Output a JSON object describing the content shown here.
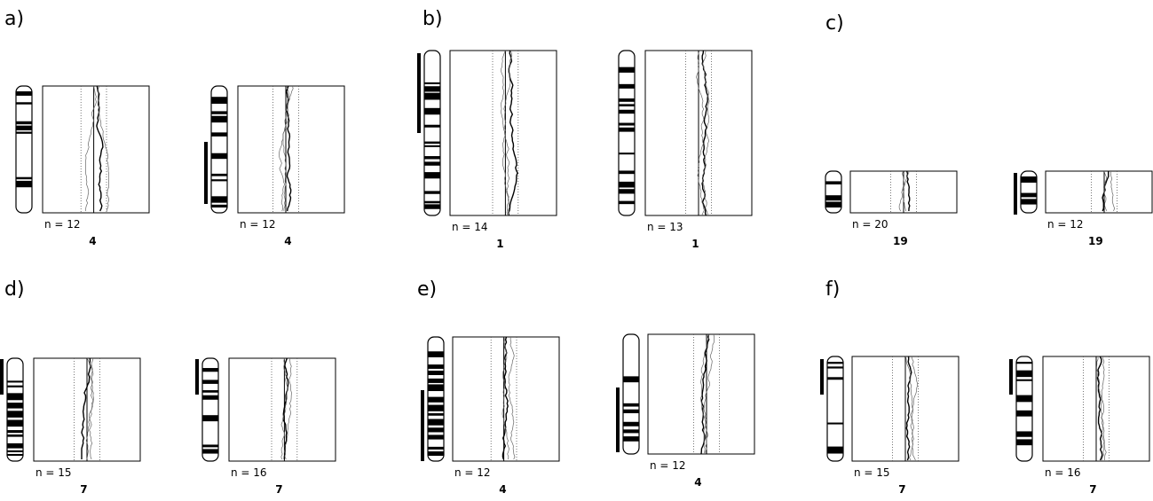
{
  "panels": [
    {
      "label": "a)",
      "plots": [
        {
          "n": "n = 12",
          "chromosome": "4"
        },
        {
          "n": "n = 12",
          "chromosome": "4"
        }
      ]
    },
    {
      "label": "b)",
      "plots": [
        {
          "n": "n = 14",
          "chromosome": "1"
        },
        {
          "n": "n = 13",
          "chromosome": "1"
        }
      ]
    },
    {
      "label": "c)",
      "plots": [
        {
          "n": "n = 20",
          "chromosome": "19"
        },
        {
          "n": "n = 12",
          "chromosome": "19"
        }
      ]
    },
    {
      "label": "d)",
      "plots": [
        {
          "n": "n = 15",
          "chromosome": "7"
        },
        {
          "n": "n = 16",
          "chromosome": "7"
        }
      ]
    },
    {
      "label": "e)",
      "plots": [
        {
          "n": "n = 12",
          "chromosome": "4"
        },
        {
          "n": "n = 12",
          "chromosome": "4"
        }
      ]
    },
    {
      "label": "f)",
      "plots": [
        {
          "n": "n = 15",
          "chromosome": "7"
        },
        {
          "n": "n = 16",
          "chromosome": "7"
        }
      ]
    }
  ]
}
